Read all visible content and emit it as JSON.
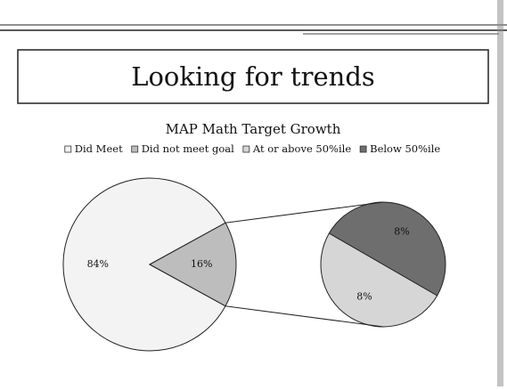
{
  "slide_title": "Looking for trends",
  "chart_data": {
    "type": "pie",
    "title": "MAP Math Target Growth",
    "categories": [
      "Did Meet",
      "Did not meet goal",
      "At or above 50%ile",
      "Below 50%ile"
    ],
    "values": [
      84,
      16,
      8,
      8
    ],
    "value_labels": [
      "84%",
      "16%",
      "8%",
      "8%"
    ],
    "colors": [
      "#f3f3f3",
      "#bdbdbd",
      "#d6d6d6",
      "#6e6e6e"
    ],
    "legend": "top"
  }
}
